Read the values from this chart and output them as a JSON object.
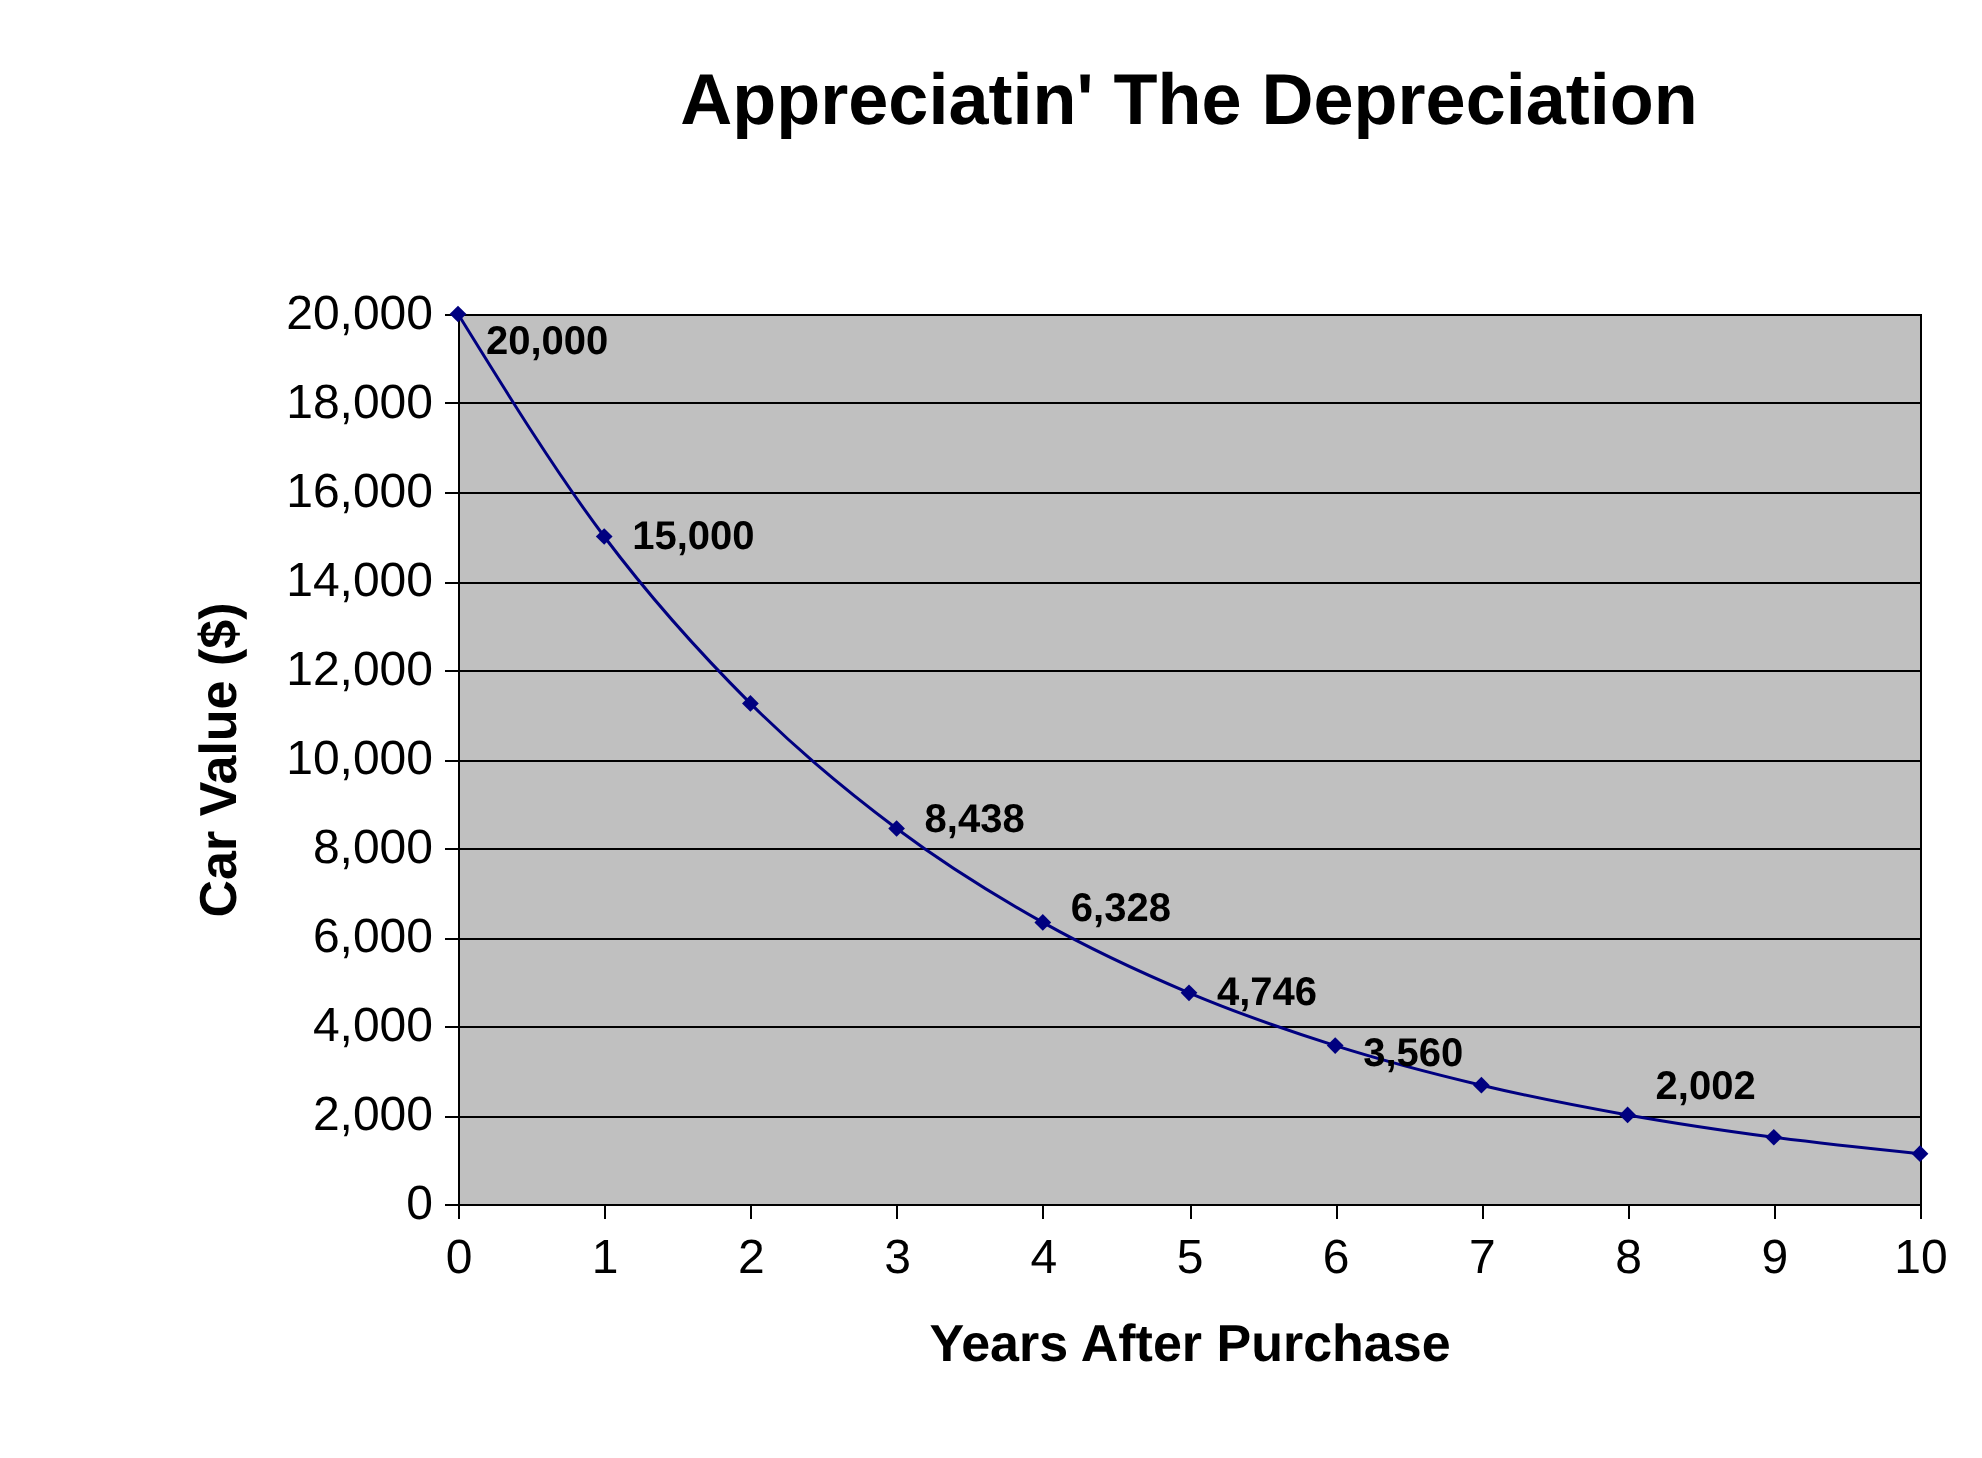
{
  "chart_data": {
    "type": "line",
    "title": "Appreciatin' The Depreciation",
    "xlabel": "Years After Purchase",
    "ylabel": "Car Value ($)",
    "x": [
      0,
      1,
      2,
      3,
      4,
      5,
      6,
      7,
      8,
      9,
      10
    ],
    "series": [
      {
        "color": "#000080",
        "values": [
          20000,
          15000,
          11250,
          8438,
          6328,
          4746,
          3560,
          2670,
          2002,
          1500,
          1130
        ],
        "value_labels": [
          "20,000",
          "15,000",
          null,
          "8,438",
          "6,328",
          "4,746",
          "3,560",
          null,
          "2,002",
          null,
          null
        ]
      }
    ],
    "xlim": [
      0,
      10
    ],
    "xticks": [
      0,
      1,
      2,
      3,
      4,
      5,
      6,
      7,
      8,
      9,
      10
    ],
    "ylim": [
      0,
      20000
    ],
    "yticks": [
      0,
      {
        "value": 2000,
        "label": "2,000"
      },
      {
        "value": 4000,
        "label": "4,000"
      },
      {
        "value": 6000,
        "label": "6,000"
      },
      {
        "value": 8000,
        "label": "8,000"
      },
      {
        "value": 10000,
        "label": "10,000"
      },
      {
        "value": 12000,
        "label": "12,000"
      },
      {
        "value": 14000,
        "label": "14,000"
      },
      {
        "value": 16000,
        "label": "16,000"
      },
      {
        "value": 18000,
        "label": "18,000"
      },
      {
        "value": 20000,
        "label": "20,000"
      }
    ],
    "grid": "y",
    "marker": "diamond",
    "line_style": "solid"
  }
}
